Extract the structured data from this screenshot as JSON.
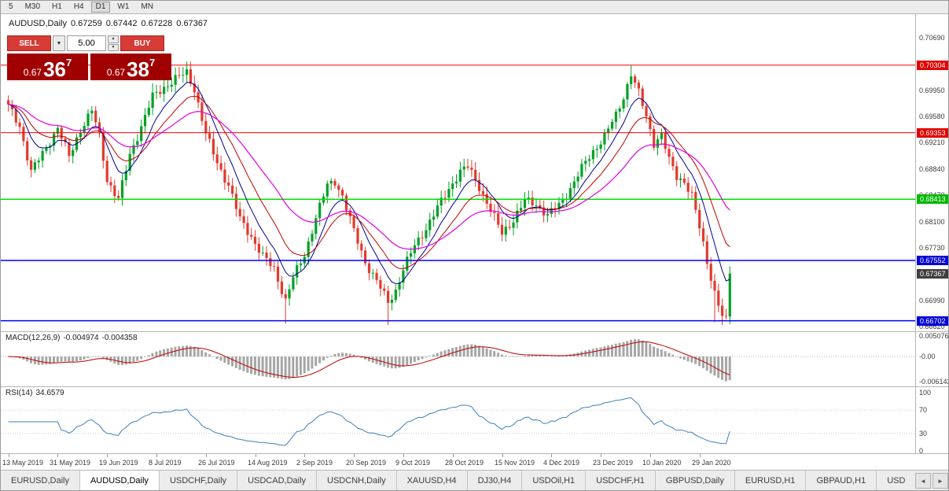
{
  "topbar": {
    "timeframes": [
      {
        "label": "5",
        "active": false
      },
      {
        "label": "M30",
        "active": false
      },
      {
        "label": "H1",
        "active": false
      },
      {
        "label": "H4",
        "active": false
      },
      {
        "label": "D1",
        "active": true
      },
      {
        "label": "W1",
        "active": false
      },
      {
        "label": "MN",
        "active": false
      }
    ]
  },
  "header": {
    "symbol": "AUDUSD,Daily",
    "open": "0.67259",
    "high": "0.67442",
    "low": "0.67228",
    "close": "0.67367"
  },
  "trade_panel": {
    "sell_label": "SELL",
    "buy_label": "BUY",
    "volume": "5.00",
    "sell_price": {
      "small": "0.67",
      "big": "36",
      "sup": "7"
    },
    "buy_price": {
      "small": "0.67",
      "big": "38",
      "sup": "7"
    }
  },
  "price_axis": {
    "ticks": [
      "0.70690",
      "0.70320",
      "0.69950",
      "0.69580",
      "0.69210",
      "0.68840",
      "0.68470",
      "0.68100",
      "0.67730",
      "0.67360",
      "0.66990",
      "0.66620"
    ],
    "badges": [
      {
        "text": "0.70304",
        "bg": "#e00000"
      },
      {
        "text": "0.69353",
        "bg": "#e00000"
      },
      {
        "text": "0.68413",
        "bg": "#00b800"
      },
      {
        "text": "0.67552",
        "bg": "#0000d8"
      },
      {
        "text": "0.67367",
        "bg": "#3f3f3f"
      },
      {
        "text": "0.66702",
        "bg": "#0000d8"
      }
    ]
  },
  "macd": {
    "label": "MACD(12,26,9)",
    "value_main": "-0.004974",
    "value_signal": "-0.004358",
    "axis_labels": [
      "0.005076",
      "-0.00",
      "-0.006142"
    ]
  },
  "rsi": {
    "label": "RSI(14)",
    "value": "34.6579",
    "axis_labels": [
      "100",
      "70",
      "30",
      "0"
    ]
  },
  "tabbar": {
    "scroll_left": "◄",
    "scroll_right": "►",
    "tabs": [
      {
        "label": "EURUSD,Daily",
        "active": false
      },
      {
        "label": "AUDUSD,Daily",
        "active": true
      },
      {
        "label": "USDCHF,Daily",
        "active": false
      },
      {
        "label": "USDCAD,Daily",
        "active": false
      },
      {
        "label": "USDCNH,Daily",
        "active": false
      },
      {
        "label": "XAUUSD,H4",
        "active": false
      },
      {
        "label": "DJ30,H4",
        "active": false
      },
      {
        "label": "USDOil,H1",
        "active": false
      },
      {
        "label": "USDCHF,H1",
        "active": false
      },
      {
        "label": "GBPUSD,Daily",
        "active": false
      },
      {
        "label": "EURUSD,H1",
        "active": false
      },
      {
        "label": "GBPAUD,H1",
        "active": false
      },
      {
        "label": "USD",
        "active": false
      }
    ]
  },
  "chart_data": {
    "type": "candlestick",
    "symbol": "AUDUSD",
    "timeframe": "Daily",
    "bar_count": 191,
    "bars_per_label": 13,
    "last_close": 0.67367,
    "price_range": [
      0.6662,
      0.7069
    ],
    "x_labels": [
      "13 May 2019",
      "31 May 2019",
      "19 Jun 2019",
      "8 Jul 2019",
      "26 Jul 2019",
      "14 Aug 2019",
      "2 Sep 2019",
      "20 Sep 2019",
      "9 Oct 2019",
      "28 Oct 2019",
      "15 Nov 2019",
      "4 Dec 2019",
      "23 Dec 2019",
      "10 Jan 2020",
      "29 Jan 2020"
    ],
    "anchors": [
      [
        0,
        0.6972
      ],
      [
        3,
        0.6945
      ],
      [
        6,
        0.688
      ],
      [
        9,
        0.6906
      ],
      [
        13,
        0.6942
      ],
      [
        16,
        0.6901
      ],
      [
        19,
        0.694
      ],
      [
        22,
        0.6966
      ],
      [
        24,
        0.6931
      ],
      [
        26,
        0.6869
      ],
      [
        29,
        0.6841
      ],
      [
        32,
        0.6904
      ],
      [
        35,
        0.6944
      ],
      [
        38,
        0.6986
      ],
      [
        41,
        0.6999
      ],
      [
        44,
        0.7011
      ],
      [
        47,
        0.702
      ],
      [
        49,
        0.6997
      ],
      [
        52,
        0.6933
      ],
      [
        55,
        0.6893
      ],
      [
        58,
        0.6861
      ],
      [
        61,
        0.6813
      ],
      [
        64,
        0.6789
      ],
      [
        67,
        0.6761
      ],
      [
        70,
        0.6743
      ],
      [
        73,
        0.6699
      ],
      [
        75,
        0.6731
      ],
      [
        78,
        0.6763
      ],
      [
        81,
        0.6816
      ],
      [
        84,
        0.6861
      ],
      [
        86,
        0.6867
      ],
      [
        88,
        0.6846
      ],
      [
        91,
        0.6796
      ],
      [
        94,
        0.6753
      ],
      [
        97,
        0.6726
      ],
      [
        100,
        0.6696
      ],
      [
        102,
        0.6713
      ],
      [
        104,
        0.6743
      ],
      [
        107,
        0.6776
      ],
      [
        110,
        0.6801
      ],
      [
        113,
        0.6829
      ],
      [
        116,
        0.6856
      ],
      [
        119,
        0.6881
      ],
      [
        121,
        0.6887
      ],
      [
        124,
        0.6859
      ],
      [
        127,
        0.6826
      ],
      [
        130,
        0.6793
      ],
      [
        133,
        0.6813
      ],
      [
        136,
        0.6839
      ],
      [
        139,
        0.6835
      ],
      [
        142,
        0.6819
      ],
      [
        145,
        0.6833
      ],
      [
        148,
        0.6857
      ],
      [
        151,
        0.6885
      ],
      [
        154,
        0.6909
      ],
      [
        157,
        0.6931
      ],
      [
        160,
        0.6959
      ],
      [
        162,
        0.6986
      ],
      [
        164,
        0.7019
      ],
      [
        166,
        0.6991
      ],
      [
        168,
        0.6957
      ],
      [
        170,
        0.6921
      ],
      [
        172,
        0.6933
      ],
      [
        174,
        0.6896
      ],
      [
        176,
        0.6873
      ],
      [
        178,
        0.6867
      ],
      [
        180,
        0.6847
      ],
      [
        182,
        0.6801
      ],
      [
        184,
        0.6753
      ],
      [
        186,
        0.6711
      ],
      [
        188,
        0.6677
      ],
      [
        189,
        0.6669
      ],
      [
        190,
        0.6737
      ]
    ],
    "spike_highs": [
      [
        38,
        0.7005
      ],
      [
        45,
        0.7028
      ],
      [
        47,
        0.7031
      ],
      [
        164,
        0.703
      ]
    ],
    "spike_lows": [
      [
        73,
        0.6666
      ],
      [
        100,
        0.6664
      ],
      [
        186,
        0.6668
      ],
      [
        188,
        0.6664
      ]
    ],
    "up_color": "#00a125",
    "down_color": "#e23a2e",
    "moving_averages": [
      {
        "type": "ema",
        "period": 8,
        "color": "#000096",
        "width": 1
      },
      {
        "type": "ema",
        "period": 16,
        "color": "#c00000",
        "width": 1
      },
      {
        "type": "ema",
        "period": 34,
        "color": "#e000e0",
        "width": 1.2
      }
    ],
    "h_lines": [
      {
        "price": 0.70304,
        "color": "#ff0000",
        "width": 1
      },
      {
        "price": 0.69353,
        "color": "#ff0000",
        "width": 1
      },
      {
        "price": 0.68413,
        "color": "#00e000",
        "width": 1.5
      },
      {
        "price": 0.67552,
        "color": "#0000ff",
        "width": 1.5
      },
      {
        "price": 0.66702,
        "color": "#0000ff",
        "width": 1.5
      }
    ],
    "indicators": {
      "macd": {
        "params": [
          12,
          26,
          9
        ],
        "histogram_color": "#a6a6a6",
        "signal_color": "#c00000"
      },
      "rsi": {
        "period": 14,
        "line_color": "#3f7fbf",
        "levels": [
          30,
          70
        ]
      }
    }
  }
}
